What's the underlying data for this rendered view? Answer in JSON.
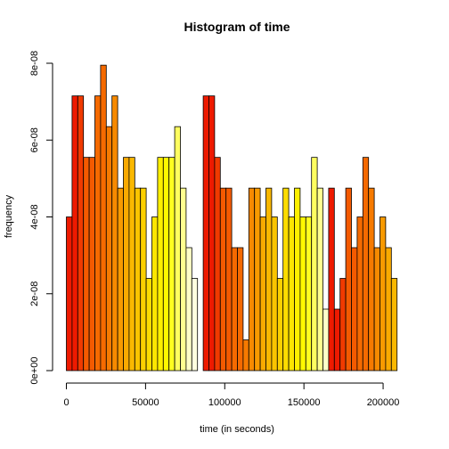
{
  "chart_data": {
    "type": "bar",
    "title": "Histogram of time",
    "xlabel": "time (in seconds)",
    "ylabel": "frequency",
    "xlim": [
      0,
      216000
    ],
    "ylim": [
      0,
      8e-08
    ],
    "bin_width": 3600,
    "x_ticks": [
      0,
      50000,
      100000,
      150000,
      200000
    ],
    "x_tick_labels": [
      "0",
      "50000",
      "100000",
      "150000",
      "200000"
    ],
    "y_ticks": [
      0,
      2e-08,
      4e-08,
      6e-08,
      8e-08
    ],
    "y_tick_labels": [
      "0e+00",
      "2e-08",
      "4e-08",
      "6e-08",
      "8e-08"
    ],
    "values": [
      4e-08,
      7.15e-08,
      7.15e-08,
      5.55e-08,
      5.55e-08,
      7.15e-08,
      7.95e-08,
      6.35e-08,
      7.15e-08,
      4.75e-08,
      5.55e-08,
      5.55e-08,
      4.75e-08,
      4.75e-08,
      2.4e-08,
      4e-08,
      5.55e-08,
      5.55e-08,
      5.55e-08,
      6.35e-08,
      4.75e-08,
      3.2e-08,
      2.4e-08,
      0,
      7.15e-08,
      7.15e-08,
      5.55e-08,
      4.75e-08,
      4.75e-08,
      3.2e-08,
      3.2e-08,
      8e-09,
      4.75e-08,
      4.75e-08,
      4e-08,
      4.75e-08,
      4e-08,
      2.4e-08,
      4.75e-08,
      4e-08,
      4.75e-08,
      4e-08,
      4e-08,
      5.55e-08,
      4.75e-08,
      1.6e-08,
      4.75e-08,
      1.6e-08,
      2.4e-08,
      4.75e-08,
      3.2e-08,
      4e-08,
      5.55e-08,
      4.75e-08,
      3.2e-08,
      4e-08,
      3.2e-08,
      2.4e-08
    ],
    "colors": [
      "#EE1A00",
      "#EE1A00",
      "#F03A00",
      "#F45A00",
      "#F45A00",
      "#F56A00",
      "#F56A00",
      "#F67A00",
      "#F78A00",
      "#F89A00",
      "#F9AA00",
      "#FAB800",
      "#FAC400",
      "#FBD000",
      "#FCDC00",
      "#FDE600",
      "#FEF000",
      "#FEF800",
      "#FFFF20",
      "#FFFF60",
      "#FFFF90",
      "#FFFFC8",
      "#FFFFE0",
      "#FFFFFF",
      "#EE1A00",
      "#EE1A00",
      "#F03A00",
      "#F45A00",
      "#F45A00",
      "#F56A00",
      "#F56A00",
      "#F67A00",
      "#F78A00",
      "#F89A00",
      "#F9AA00",
      "#FAB800",
      "#FAC400",
      "#FBD000",
      "#FCDC00",
      "#FDE600",
      "#FEF000",
      "#FEF800",
      "#FFFF20",
      "#FFFF60",
      "#FFFF90",
      "#FFFFC8",
      "#EE1A00",
      "#EE1A00",
      "#F03A00",
      "#F45A00",
      "#F45A00",
      "#F56A00",
      "#F56A00",
      "#F67A00",
      "#F78A00",
      "#F89A00",
      "#F9AA00",
      "#FAB800"
    ],
    "grid": false,
    "legend": "none"
  }
}
